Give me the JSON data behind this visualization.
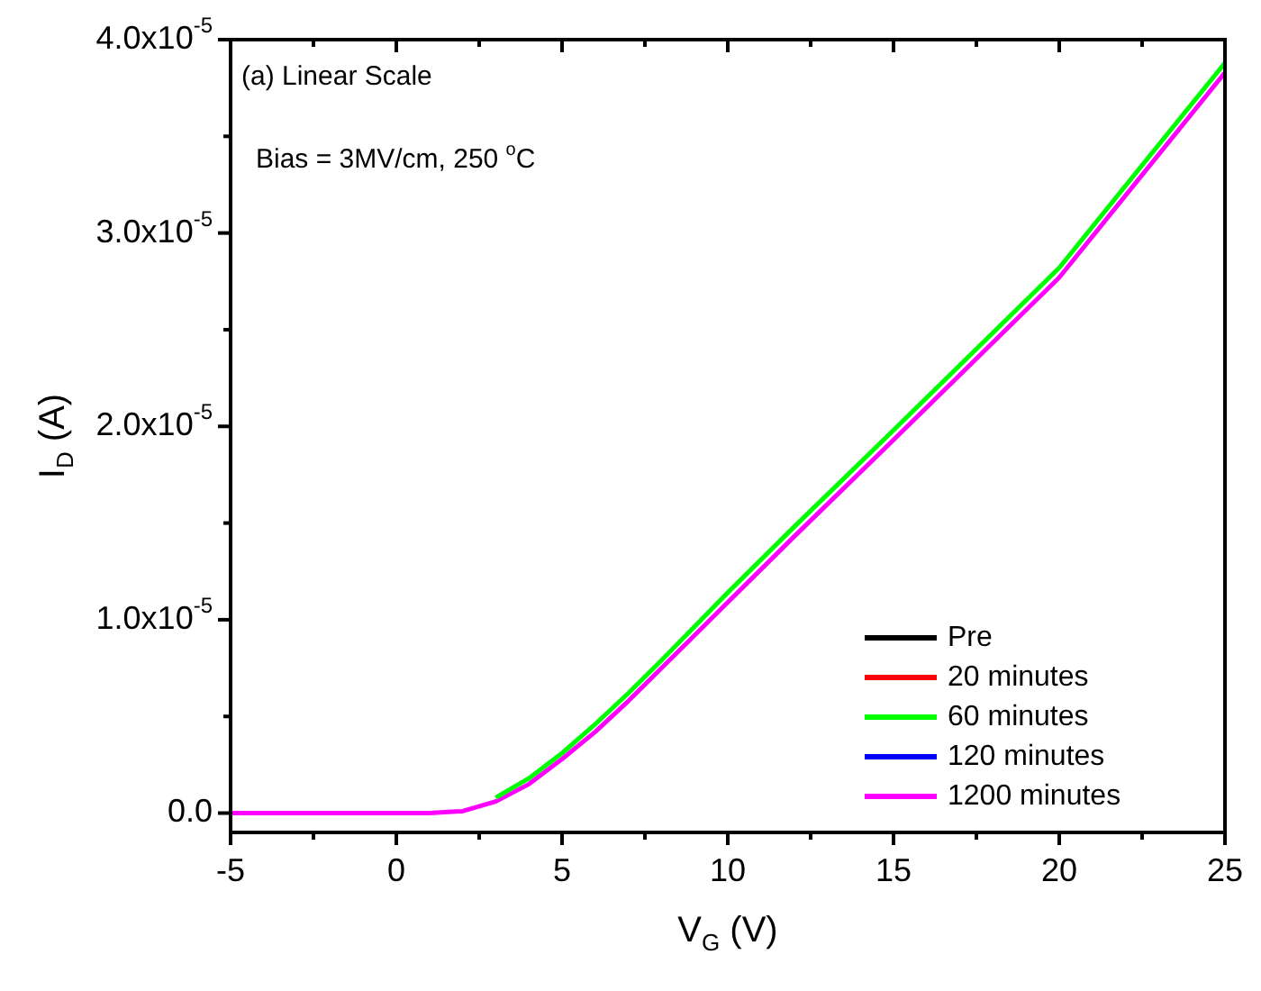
{
  "chart_data": {
    "type": "line",
    "xlabel": "V$_{G}$ (V)",
    "ylabel": "I$_{D}$ (A)",
    "annotations": [
      "(a) Linear Scale",
      "Bias = 3MV/cm, 250 $^{o}$C"
    ],
    "x": [
      -5,
      0,
      1,
      2,
      3,
      4,
      5,
      6,
      7,
      8,
      10,
      12,
      15,
      20,
      25
    ],
    "series": [
      {
        "name": "Pre",
        "color": "#000000",
        "values": [
          null,
          null,
          null,
          null,
          null,
          null,
          null,
          null,
          null,
          null,
          null,
          null,
          null,
          null,
          null
        ]
      },
      {
        "name": "20 minutes",
        "color": "#ff0000",
        "values": [
          null,
          null,
          null,
          null,
          null,
          null,
          null,
          null,
          null,
          null,
          null,
          null,
          null,
          null,
          null
        ]
      },
      {
        "name": "60 minutes",
        "color": "#00ff00",
        "values": [
          null,
          null,
          null,
          null,
          8e-07,
          1.8e-06,
          3.1e-06,
          4.6e-06,
          6.2e-06,
          7.9e-06,
          1.14e-05,
          1.48e-05,
          1.98e-05,
          2.82e-05,
          3.88e-05
        ]
      },
      {
        "name": "120 minutes",
        "color": "#0000ff",
        "values": [
          null,
          null,
          null,
          null,
          null,
          null,
          null,
          null,
          null,
          null,
          null,
          null,
          null,
          null,
          null
        ]
      },
      {
        "name": "1200 minutes",
        "color": "#ff00ff",
        "values": [
          0,
          0,
          0,
          1e-07,
          6e-07,
          1.5e-06,
          2.8e-06,
          4.2e-06,
          5.8e-06,
          7.5e-06,
          1.09e-05,
          1.43e-05,
          1.93e-05,
          2.77e-05,
          3.83e-05
        ]
      }
    ],
    "xlim": [
      -5,
      25
    ],
    "xticks": [
      -5,
      {
        "value": -2.5,
        "label": null
      },
      0,
      {
        "value": 2.5,
        "label": null
      },
      5,
      {
        "value": 7.5,
        "label": null
      },
      10,
      {
        "value": 12.5,
        "label": null
      },
      15,
      {
        "value": 17.5,
        "label": null
      },
      20,
      {
        "value": 22.5,
        "label": null
      },
      25
    ],
    "ylim": [
      -1e-06,
      4e-05
    ],
    "yticks": [
      {
        "value": 0,
        "label": "0.0"
      },
      {
        "value": 5e-06,
        "label": null
      },
      {
        "value": 1e-05,
        "label": "1.0x10$^{-5}$"
      },
      {
        "value": 1.5e-05,
        "label": null
      },
      {
        "value": 2e-05,
        "label": "2.0x10$^{-5}$"
      },
      {
        "value": 2.5e-05,
        "label": null
      },
      {
        "value": 3e-05,
        "label": "3.0x10$^{-5}$"
      },
      {
        "value": 3.5e-05,
        "label": null
      },
      {
        "value": 4e-05,
        "label": "4.0x10$^{-5}$"
      }
    ],
    "legend": "bottom right",
    "marker": "none",
    "line_style": "solid"
  }
}
